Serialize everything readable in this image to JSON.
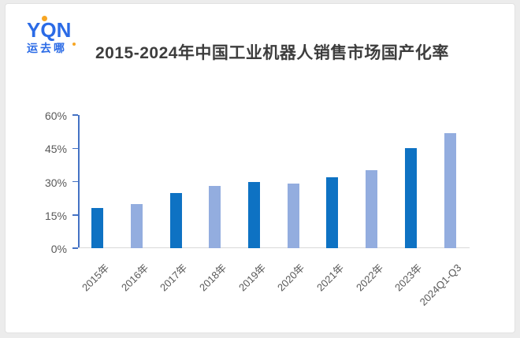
{
  "logo": {
    "text": "YQN",
    "subtext": "运去哪",
    "blue": "#2b6be6",
    "orange": "#f7a623"
  },
  "title": "2015-2024年中国工业机器人销售市场国产化率",
  "chart_data": {
    "type": "bar",
    "title": "2015-2024年中国工业机器人销售市场国产化率",
    "categories": [
      "2015年",
      "2016年",
      "2017年",
      "2018年",
      "2019年",
      "2020年",
      "2021年",
      "2022年",
      "2023年",
      "2024Q1-Q3"
    ],
    "values": [
      18,
      20,
      25,
      28,
      30,
      29,
      32,
      35,
      45,
      52
    ],
    "unit": "%",
    "xlabel": "",
    "ylabel": "",
    "ylim": [
      0,
      60
    ],
    "ytick_labels": [
      "0%",
      "15%",
      "30%",
      "45%",
      "60%"
    ],
    "ytick_values": [
      0,
      15,
      30,
      45,
      60
    ],
    "grid": false,
    "legend": "none",
    "bar_color_odd": "#0e72c3",
    "bar_color_even": "#93addf",
    "axis_color": "#4472c4",
    "baseline_color": "#d9d9d9",
    "label_color": "#595959"
  }
}
